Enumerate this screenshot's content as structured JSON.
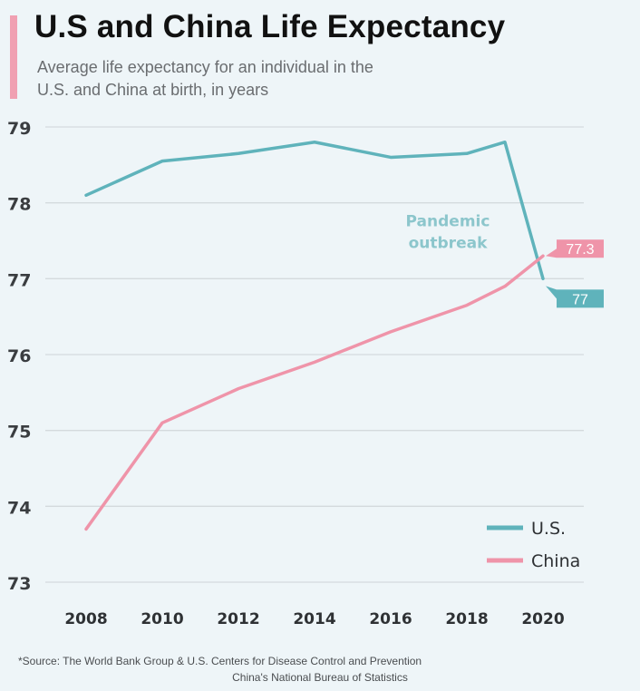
{
  "header": {
    "title": "U.S and China Life Expectancy",
    "subtitle_line1": "Average life expectancy for an individual in the",
    "subtitle_line2": "U.S. and China at birth, in years"
  },
  "footer": {
    "source_line1": "*Source: The World Bank Group & U.S. Centers for Disease Control and Prevention",
    "source_line2": "China's National Bureau of Statistics"
  },
  "colors": {
    "us": "#5fb3bb",
    "china": "#ef94a9",
    "accent_bar": "#f0a0b2",
    "grid": "#d4dadd",
    "background": "#eef5f8"
  },
  "chart_data": {
    "type": "line",
    "title": "U.S and China Life Expectancy",
    "subtitle": "Average life expectancy for an individual in the U.S. and China at birth, in years",
    "xlabel": "",
    "ylabel": "",
    "xlim": [
      2008,
      2020
    ],
    "ylim": [
      73,
      79
    ],
    "x_ticks": [
      "2008",
      "2010",
      "2012",
      "2014",
      "2016",
      "2018",
      "2020"
    ],
    "y_ticks": [
      "73",
      "74",
      "75",
      "76",
      "77",
      "78",
      "79"
    ],
    "grid": true,
    "legend_position": "bottom-right",
    "series": [
      {
        "name": "U.S.",
        "points": [
          [
            2008,
            78.1
          ],
          [
            2010,
            78.55
          ],
          [
            2012,
            78.65
          ],
          [
            2014,
            78.8
          ],
          [
            2016,
            78.6
          ],
          [
            2018,
            78.65
          ],
          [
            2019,
            78.8
          ],
          [
            2020,
            77.0
          ]
        ],
        "end_label": "77"
      },
      {
        "name": "China",
        "points": [
          [
            2008,
            73.7
          ],
          [
            2010,
            75.1
          ],
          [
            2012,
            75.55
          ],
          [
            2014,
            75.9
          ],
          [
            2016,
            76.3
          ],
          [
            2018,
            76.65
          ],
          [
            2019,
            76.9
          ],
          [
            2020,
            77.3
          ]
        ],
        "end_label": "77.3"
      }
    ],
    "annotations": [
      {
        "text_line1": "Pandemic",
        "text_line2": "outbreak",
        "x": 2017.5,
        "y": 77.45
      }
    ]
  }
}
